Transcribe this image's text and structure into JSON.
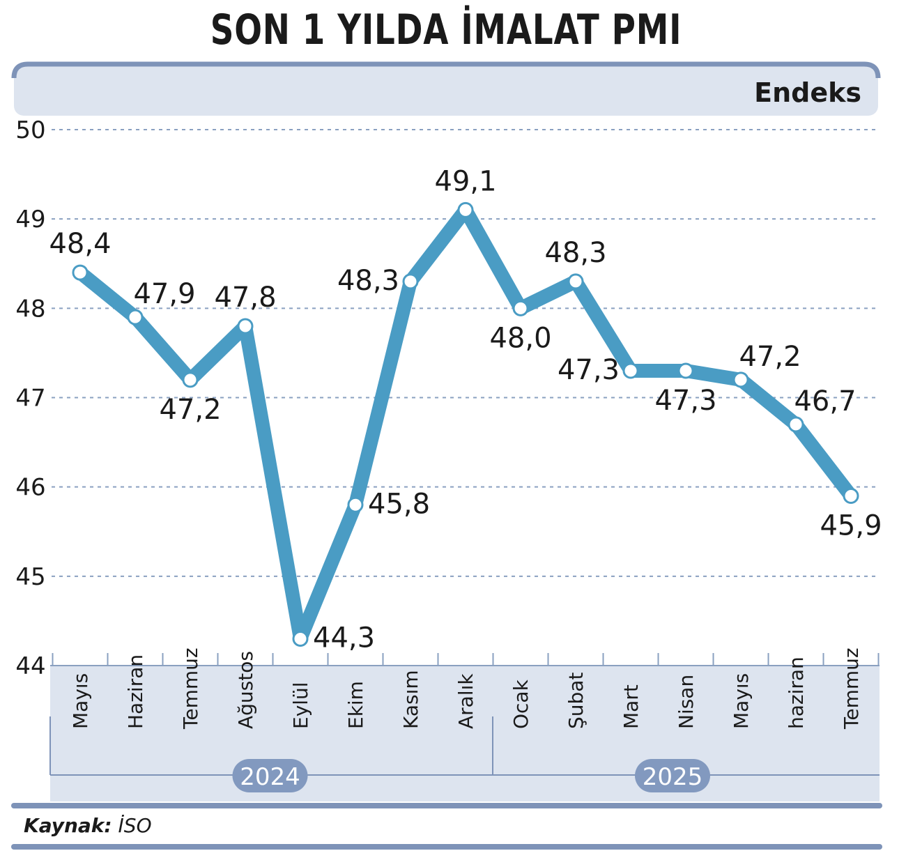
{
  "title": "SON 1 YILDA İMALAT PMI",
  "unit_label": "Endeks",
  "source": {
    "label": "Kaynak:",
    "value": "İSO"
  },
  "colors": {
    "line": "#4a9cc4",
    "band": "#dde4ef",
    "band_edge": "#7e93b8",
    "grid": "#8aa0c0",
    "year_badge": "#8299bf"
  },
  "chart_data": {
    "type": "line",
    "title": "SON 1 YILDA İMALAT PMI",
    "ylabel": "Endeks",
    "xlabel": "",
    "ylim": [
      44,
      50
    ],
    "yticks": [
      44,
      45,
      46,
      47,
      48,
      49,
      50
    ],
    "grid": true,
    "categories": [
      "Mayıs",
      "Haziran",
      "Temmuz",
      "Ağustos",
      "Eylül",
      "Ekim",
      "Kasım",
      "Aralık",
      "Ocak",
      "Şubat",
      "Mart",
      "Nisan",
      "Mayıs",
      "haziran",
      "Temmuz"
    ],
    "years": [
      {
        "label": "2024",
        "from": 0,
        "to": 7
      },
      {
        "label": "2025",
        "from": 8,
        "to": 14
      }
    ],
    "series": [
      {
        "values": [
          48.4,
          47.9,
          47.2,
          47.8,
          44.3,
          45.8,
          48.3,
          49.1,
          48.0,
          48.3,
          47.3,
          47.3,
          47.2,
          46.7,
          45.9
        ],
        "labels": [
          "48,4",
          "47,9",
          "47,2",
          "47,8",
          "44,3",
          "45,8",
          "48,3",
          "49,1",
          "48,0",
          "48,3",
          "47,3",
          "47,3",
          "47,2",
          "46,7",
          "45,9"
        ],
        "label_positions": [
          "above",
          "above-right",
          "below",
          "above",
          "right",
          "right",
          "left",
          "above",
          "below",
          "above",
          "left",
          "below",
          "above-right",
          "above-right",
          "below"
        ]
      }
    ]
  }
}
